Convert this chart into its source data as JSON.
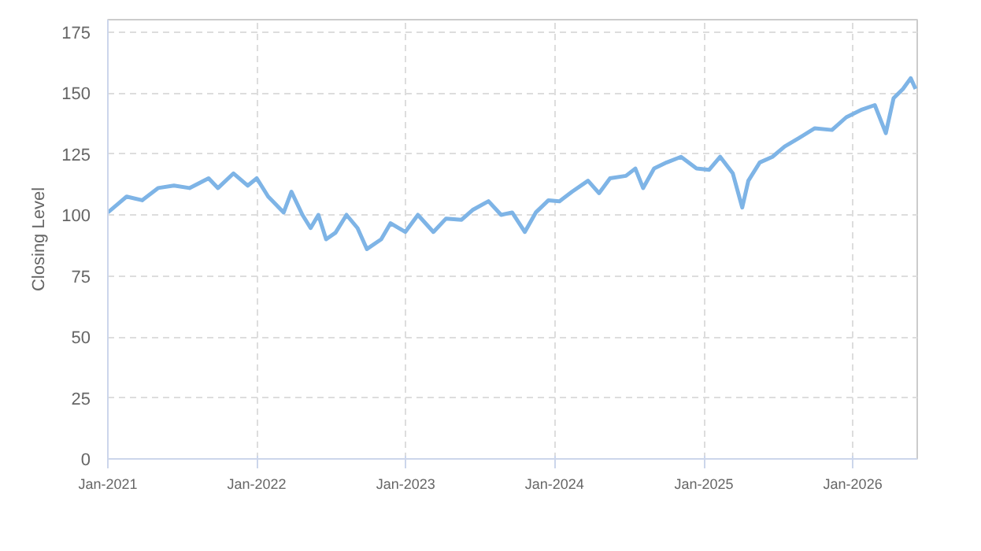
{
  "chart_data": {
    "type": "line",
    "ylabel": "Closing Level",
    "x": [
      "2021-01-01",
      "2021-02-16",
      "2021-03-26",
      "2021-05-04",
      "2021-06-12",
      "2021-07-20",
      "2021-09-05",
      "2021-09-28",
      "2021-11-05",
      "2021-12-10",
      "2022-01-01",
      "2022-01-29",
      "2022-03-08",
      "2022-03-27",
      "2022-04-23",
      "2022-05-13",
      "2022-06-01",
      "2022-06-20",
      "2022-07-13",
      "2022-08-09",
      "2022-09-05",
      "2022-09-28",
      "2022-11-02",
      "2022-11-25",
      "2022-12-31",
      "2023-01-31",
      "2023-03-10",
      "2023-04-10",
      "2023-05-18",
      "2023-06-14",
      "2023-07-23",
      "2023-08-23",
      "2023-09-19",
      "2023-10-20",
      "2023-11-16",
      "2023-12-17",
      "2024-01-13",
      "2024-02-13",
      "2024-03-23",
      "2024-04-19",
      "2024-05-16",
      "2024-06-24",
      "2024-07-17",
      "2024-08-05",
      "2024-09-01",
      "2024-10-02",
      "2024-11-06",
      "2024-12-14",
      "2025-01-14",
      "2025-02-10",
      "2025-03-13",
      "2025-04-05",
      "2025-04-20",
      "2025-05-18",
      "2025-06-18",
      "2025-07-18",
      "2025-08-22",
      "2025-09-30",
      "2025-11-11",
      "2025-12-16",
      "2026-01-24",
      "2026-02-24",
      "2026-03-23",
      "2026-04-11",
      "2026-05-04",
      "2026-05-23",
      "2026-06-04"
    ],
    "series": [
      {
        "color": "#7eb4e6",
        "values": [
          101,
          107.5,
          106,
          111,
          112,
          111,
          115,
          111,
          117,
          112,
          115,
          107.5,
          101,
          109.5,
          100,
          94.6,
          100,
          90,
          92.7,
          100,
          94.6,
          86,
          90,
          96.6,
          93,
          100,
          93,
          98.5,
          98,
          102,
          105.6,
          100,
          101,
          93,
          101,
          106,
          105.6,
          109.5,
          114,
          108.9,
          115,
          116,
          119,
          111,
          119,
          121.5,
          123.8,
          119,
          118.5,
          123.8,
          117,
          103,
          114,
          121.5,
          123.8,
          128,
          131.5,
          135.5,
          134.8,
          140,
          143.2,
          145,
          133.5,
          147.8,
          151.6,
          156,
          151.6
        ]
      }
    ],
    "xlim": [
      "2021-01-01",
      "2026-06-08"
    ],
    "xticks": [
      {
        "value": "2021-01",
        "label": "Jan-2021"
      },
      {
        "value": "2022-01",
        "label": "Jan-2022"
      },
      {
        "value": "2023-01",
        "label": "Jan-2023"
      },
      {
        "value": "2024-01",
        "label": "Jan-2024"
      },
      {
        "value": "2025-01",
        "label": "Jan-2025"
      },
      {
        "value": "2026-01",
        "label": "Jan-2026"
      }
    ],
    "ylim": [
      0,
      180
    ],
    "yticks": [
      0,
      25,
      50,
      75,
      100,
      125,
      150,
      175
    ],
    "grid": true,
    "marker": "none",
    "line_style": "solid"
  }
}
